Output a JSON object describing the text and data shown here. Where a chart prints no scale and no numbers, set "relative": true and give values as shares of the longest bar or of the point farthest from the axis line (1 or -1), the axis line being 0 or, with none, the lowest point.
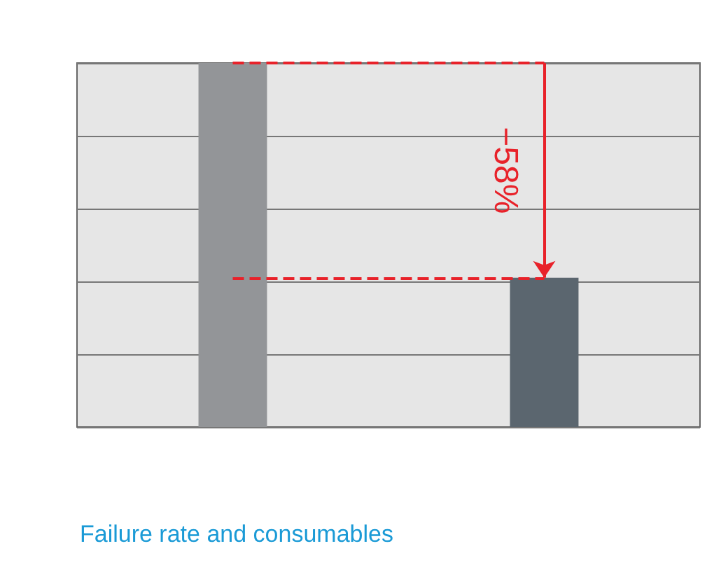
{
  "chart_data": {
    "type": "bar",
    "title": "Failure rate and consumables",
    "relative": true,
    "categories": [
      null,
      null
    ],
    "colors": [
      "#939598",
      "#5b666f"
    ],
    "values": [
      1,
      0.41
    ],
    "grid": "y",
    "ref_lines": [
      {
        "axis": "y",
        "value": 1,
        "color": "#e8222a",
        "line_style": "dashed"
      },
      {
        "axis": "y",
        "value": 0.41,
        "color": "#e8222a",
        "line_style": "dashed"
      }
    ],
    "annotations": [
      "−58%"
    ]
  }
}
